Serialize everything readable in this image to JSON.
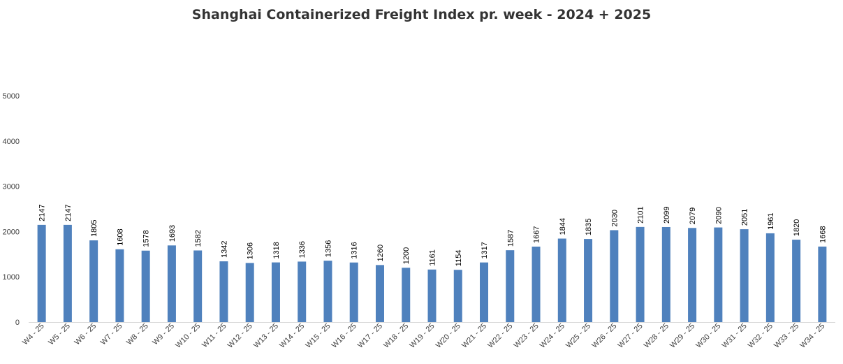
{
  "chart_data": {
    "type": "bar",
    "title": "Shanghai Containerized Freight Index pr. week - 2024 + 2025",
    "xlabel": "",
    "ylabel": "",
    "ylim": [
      0,
      5000
    ],
    "yticks": [
      0,
      1000,
      2000,
      3000,
      4000,
      5000
    ],
    "grid": false,
    "legend": "none",
    "bar_color": "#4f81bd",
    "categories": [
      "W4 - 25",
      "W5 - 25",
      "W6 - 25",
      "W7 - 25",
      "W8 - 25",
      "W9 - 25",
      "W10 - 25",
      "W11 - 25",
      "W12 - 25",
      "W13 - 25",
      "W14 - 25",
      "W15 - 25",
      "W16 - 25",
      "W17 - 25",
      "W18 - 25",
      "W19 - 25",
      "W20 - 25",
      "W21 - 25",
      "W22 - 25",
      "W23 - 25",
      "W24 - 25",
      "W25 - 25",
      "W26 - 25",
      "W27 - 25",
      "W28 - 25",
      "W29 - 25",
      "W30 - 25",
      "W31 - 25",
      "W32 - 25",
      "W33 - 25",
      "W34 - 25"
    ],
    "values": [
      2147,
      2147,
      1805,
      1608,
      1578,
      1693,
      1582,
      1342,
      1306,
      1318,
      1336,
      1356,
      1316,
      1260,
      1200,
      1161,
      1154,
      1317,
      1587,
      1667,
      1844,
      1835,
      2030,
      2101,
      2099,
      2079,
      2090,
      2051,
      1961,
      1820,
      1668
    ]
  }
}
